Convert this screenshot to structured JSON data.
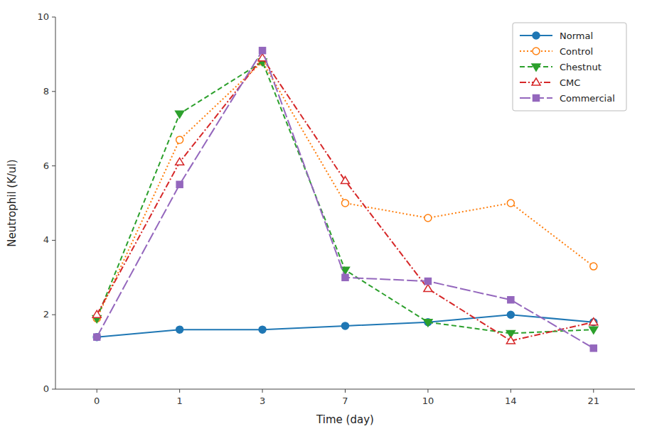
{
  "chart_data": {
    "type": "line",
    "x_label": "Time (day)",
    "y_label": "Neutrophil (K/ul)",
    "categories": [
      "0",
      "1",
      "3",
      "7",
      "10",
      "14",
      "21"
    ],
    "series": [
      {
        "name": "Normal",
        "color": "#1f77b4",
        "marker": "circle",
        "line_style": "solid",
        "values": [
          1.4,
          1.6,
          1.6,
          1.7,
          1.8,
          2.0,
          1.8
        ]
      },
      {
        "name": "Control",
        "color": "#ff7f0e",
        "marker": "circle-open",
        "line_style": "dotted",
        "values": [
          1.9,
          6.7,
          8.8,
          5.0,
          4.6,
          5.0,
          3.3
        ]
      },
      {
        "name": "Chestnut",
        "color": "#2ca02c",
        "marker": "triangle-down",
        "line_style": "dashed",
        "values": [
          1.9,
          7.4,
          8.8,
          3.2,
          1.8,
          1.5,
          1.6
        ]
      },
      {
        "name": "CMC",
        "color": "#d62728",
        "marker": "triangle-up-open",
        "line_style": "dashdot",
        "values": [
          2.0,
          6.1,
          8.9,
          5.6,
          2.7,
          1.3,
          1.8
        ]
      },
      {
        "name": "Commercial",
        "color": "#9467bd",
        "marker": "square",
        "line_style": "longdash",
        "values": [
          1.4,
          5.5,
          9.1,
          3.0,
          2.9,
          2.4,
          1.1
        ]
      }
    ],
    "ylim": [
      0,
      10
    ],
    "yticks": [
      0,
      2,
      4,
      6,
      8,
      10
    ],
    "grid": false,
    "legend": "upper right"
  }
}
